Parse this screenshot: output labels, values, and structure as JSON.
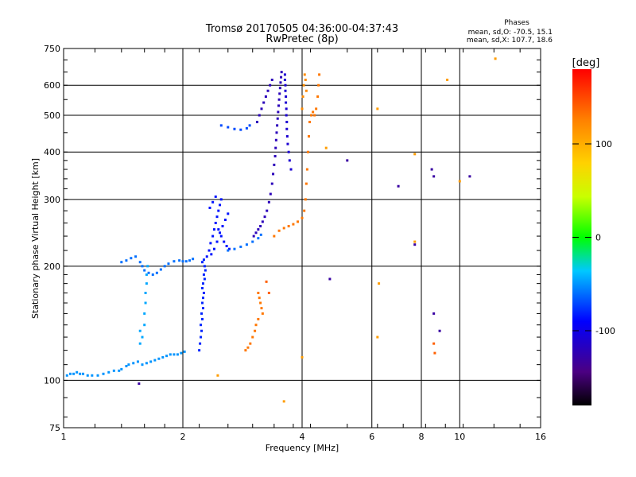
{
  "chart_data": {
    "type": "scatter",
    "title": "Tromsø 20170505 04:36:00-04:37:43",
    "subtitle": "RwPretec (8p)",
    "xlabel": "Frequency [MHz]",
    "ylabel": "Stationary phase Virtual Height [km]",
    "x_scale": "log",
    "y_scale": "log",
    "xlim": [
      1,
      16
    ],
    "ylim": [
      75,
      750
    ],
    "grid": true,
    "x_ticks": [
      {
        "v": 1,
        "label": "1"
      },
      {
        "v": 2,
        "label": "2"
      },
      {
        "v": 4,
        "label": "4"
      },
      {
        "v": 6,
        "label": "6"
      },
      {
        "v": 8,
        "label": "8"
      },
      {
        "v": 10,
        "label": "10"
      },
      {
        "v": 16,
        "label": "16"
      }
    ],
    "y_ticks": [
      {
        "v": 75,
        "label": "75"
      },
      {
        "v": 100,
        "label": "100"
      },
      {
        "v": 200,
        "label": "200"
      },
      {
        "v": 300,
        "label": "300"
      },
      {
        "v": 400,
        "label": "400"
      },
      {
        "v": 500,
        "label": "500"
      },
      {
        "v": 600,
        "label": "600"
      },
      {
        "v": 750,
        "label": "750"
      }
    ],
    "stats": {
      "heading": "Phases",
      "line1": "mean, sd,O: -70.5, 15.1",
      "line2": "mean, sd,X: 107.7, 18.6"
    },
    "colorbar": {
      "unit": "[deg]",
      "range": [
        -180,
        180
      ],
      "ticks": [
        {
          "v": 100,
          "label": "100"
        },
        {
          "v": 0,
          "label": "0"
        },
        {
          "v": -100,
          "label": "-100"
        }
      ]
    },
    "series": [
      {
        "phase": -50,
        "points": [
          [
            1.02,
            103
          ],
          [
            1.04,
            104
          ],
          [
            1.06,
            104
          ],
          [
            1.08,
            105
          ],
          [
            1.1,
            104
          ],
          [
            1.12,
            104
          ],
          [
            1.15,
            103
          ],
          [
            1.18,
            103
          ],
          [
            1.22,
            103
          ],
          [
            1.26,
            104
          ],
          [
            1.3,
            105
          ],
          [
            1.34,
            106
          ],
          [
            1.38,
            106
          ],
          [
            1.4,
            107
          ],
          [
            1.44,
            109
          ],
          [
            1.46,
            110
          ],
          [
            1.5,
            111
          ],
          [
            1.54,
            112
          ],
          [
            1.58,
            110
          ],
          [
            1.62,
            111
          ],
          [
            1.66,
            112
          ],
          [
            1.7,
            113
          ],
          [
            1.74,
            114
          ],
          [
            1.78,
            115
          ],
          [
            1.82,
            116
          ],
          [
            1.86,
            117
          ],
          [
            1.9,
            117
          ],
          [
            1.94,
            117
          ],
          [
            1.98,
            118
          ],
          [
            2.02,
            119
          ]
        ]
      },
      {
        "phase": -60,
        "points": [
          [
            1.4,
            205
          ],
          [
            1.44,
            207
          ],
          [
            1.48,
            210
          ],
          [
            1.52,
            212
          ],
          [
            1.56,
            205
          ],
          [
            1.58,
            200
          ],
          [
            1.6,
            195
          ],
          [
            1.64,
            192
          ],
          [
            1.68,
            190
          ],
          [
            1.72,
            192
          ],
          [
            1.76,
            196
          ],
          [
            1.8,
            200
          ],
          [
            1.84,
            203
          ],
          [
            1.9,
            206
          ],
          [
            1.96,
            207
          ],
          [
            2.0,
            206
          ],
          [
            2.04,
            206
          ],
          [
            2.08,
            207
          ],
          [
            2.12,
            209
          ]
        ]
      },
      {
        "phase": -45,
        "points": [
          [
            1.6,
            140
          ],
          [
            1.6,
            150
          ],
          [
            1.61,
            160
          ],
          [
            1.61,
            170
          ],
          [
            1.62,
            180
          ],
          [
            1.62,
            190
          ],
          [
            1.63,
            200
          ],
          [
            1.58,
            130
          ],
          [
            1.56,
            125
          ],
          [
            1.56,
            135
          ]
        ]
      },
      {
        "phase": -80,
        "points": [
          [
            2.2,
            120
          ],
          [
            2.21,
            125
          ],
          [
            2.22,
            130
          ],
          [
            2.23,
            135
          ],
          [
            2.22,
            140
          ],
          [
            2.24,
            145
          ],
          [
            2.23,
            150
          ],
          [
            2.25,
            155
          ],
          [
            2.24,
            160
          ],
          [
            2.25,
            165
          ],
          [
            2.26,
            170
          ],
          [
            2.24,
            175
          ],
          [
            2.25,
            180
          ],
          [
            2.27,
            185
          ],
          [
            2.26,
            190
          ],
          [
            2.28,
            195
          ],
          [
            2.27,
            200
          ],
          [
            2.24,
            205
          ],
          [
            2.26,
            208
          ]
        ]
      },
      {
        "phase": -85,
        "points": [
          [
            2.3,
            212
          ],
          [
            2.33,
            220
          ],
          [
            2.35,
            230
          ],
          [
            2.38,
            240
          ],
          [
            2.4,
            250
          ],
          [
            2.42,
            260
          ],
          [
            2.44,
            270
          ],
          [
            2.46,
            280
          ],
          [
            2.48,
            290
          ],
          [
            2.5,
            300
          ],
          [
            2.36,
            215
          ],
          [
            2.4,
            222
          ],
          [
            2.44,
            232
          ],
          [
            2.48,
            245
          ],
          [
            2.52,
            255
          ],
          [
            2.56,
            265
          ],
          [
            2.6,
            275
          ],
          [
            2.34,
            285
          ],
          [
            2.38,
            295
          ],
          [
            2.42,
            305
          ],
          [
            2.46,
            250
          ],
          [
            2.5,
            240
          ],
          [
            2.54,
            232
          ],
          [
            2.58,
            226
          ],
          [
            2.62,
            222
          ]
        ]
      },
      {
        "phase": -60,
        "points": [
          [
            2.6,
            220
          ],
          [
            2.7,
            222
          ],
          [
            2.8,
            225
          ],
          [
            2.9,
            228
          ],
          [
            3.0,
            232
          ],
          [
            3.1,
            237
          ],
          [
            3.15,
            242
          ]
        ]
      },
      {
        "phase": -120,
        "points": [
          [
            3.02,
            240
          ],
          [
            3.06,
            245
          ],
          [
            3.1,
            250
          ],
          [
            3.14,
            255
          ],
          [
            3.18,
            262
          ],
          [
            3.22,
            270
          ],
          [
            3.26,
            280
          ],
          [
            3.3,
            295
          ],
          [
            3.33,
            310
          ],
          [
            3.36,
            330
          ],
          [
            3.38,
            350
          ],
          [
            3.4,
            370
          ],
          [
            3.42,
            390
          ],
          [
            3.43,
            410
          ],
          [
            3.44,
            430
          ],
          [
            3.45,
            450
          ],
          [
            3.46,
            470
          ],
          [
            3.47,
            490
          ],
          [
            3.48,
            510
          ],
          [
            3.49,
            530
          ],
          [
            3.5,
            550
          ],
          [
            3.51,
            570
          ],
          [
            3.52,
            590
          ],
          [
            3.53,
            610
          ],
          [
            3.54,
            630
          ],
          [
            3.55,
            650
          ]
        ]
      },
      {
        "phase": -110,
        "points": [
          [
            3.62,
            640
          ],
          [
            3.62,
            620
          ],
          [
            3.63,
            600
          ],
          [
            3.63,
            580
          ],
          [
            3.64,
            560
          ],
          [
            3.64,
            540
          ],
          [
            3.65,
            520
          ],
          [
            3.65,
            500
          ],
          [
            3.66,
            480
          ],
          [
            3.66,
            460
          ],
          [
            3.67,
            440
          ],
          [
            3.68,
            420
          ],
          [
            3.7,
            400
          ],
          [
            3.72,
            380
          ],
          [
            3.75,
            360
          ]
        ]
      },
      {
        "phase": -120,
        "points": [
          [
            3.08,
            480
          ],
          [
            3.12,
            500
          ],
          [
            3.16,
            520
          ],
          [
            3.2,
            540
          ],
          [
            3.24,
            560
          ],
          [
            3.28,
            580
          ],
          [
            3.32,
            600
          ],
          [
            3.36,
            620
          ]
        ]
      },
      {
        "phase": -70,
        "points": [
          [
            2.5,
            470
          ],
          [
            2.6,
            465
          ],
          [
            2.7,
            460
          ],
          [
            2.8,
            458
          ],
          [
            2.9,
            462
          ],
          [
            2.95,
            470
          ]
        ]
      },
      {
        "phase": 130,
        "points": [
          [
            3.4,
            240
          ],
          [
            3.5,
            248
          ],
          [
            3.6,
            252
          ],
          [
            3.7,
            255
          ],
          [
            3.8,
            258
          ],
          [
            3.9,
            262
          ],
          [
            4.0,
            268
          ],
          [
            4.05,
            280
          ],
          [
            4.08,
            300
          ],
          [
            4.1,
            330
          ],
          [
            4.12,
            360
          ],
          [
            4.14,
            400
          ],
          [
            4.16,
            440
          ],
          [
            4.18,
            480
          ],
          [
            4.22,
            500
          ],
          [
            4.26,
            510
          ],
          [
            4.3,
            500
          ],
          [
            4.34,
            520
          ],
          [
            4.38,
            560
          ],
          [
            4.4,
            600
          ],
          [
            4.42,
            640
          ]
        ]
      },
      {
        "phase": 120,
        "points": [
          [
            4.0,
            520
          ],
          [
            4.02,
            560
          ],
          [
            4.04,
            600
          ],
          [
            4.06,
            640
          ],
          [
            4.08,
            620
          ],
          [
            4.1,
            580
          ]
        ]
      },
      {
        "phase": 130,
        "points": [
          [
            3.1,
            170
          ],
          [
            3.12,
            165
          ],
          [
            3.14,
            160
          ],
          [
            3.16,
            155
          ],
          [
            3.18,
            150
          ],
          [
            3.1,
            145
          ],
          [
            3.06,
            140
          ],
          [
            3.04,
            135
          ],
          [
            3.0,
            130
          ],
          [
            2.96,
            125
          ],
          [
            2.92,
            122
          ],
          [
            2.88,
            120
          ]
        ]
      },
      {
        "phase": 110,
        "points": [
          [
            6.2,
            520
          ],
          [
            6.25,
            180
          ],
          [
            6.2,
            130
          ],
          [
            7.7,
            395
          ],
          [
            7.7,
            232
          ],
          [
            9.3,
            620
          ],
          [
            10.0,
            335
          ],
          [
            12.3,
            705
          ],
          [
            4.0,
            115
          ],
          [
            3.6,
            88
          ],
          [
            2.45,
            103
          ],
          [
            4.6,
            410
          ]
        ]
      },
      {
        "phase": -130,
        "points": [
          [
            5.2,
            380
          ],
          [
            7.0,
            325
          ],
          [
            8.5,
            360
          ],
          [
            8.6,
            345
          ],
          [
            7.7,
            228
          ],
          [
            4.7,
            185
          ],
          [
            8.6,
            150
          ],
          [
            8.9,
            135
          ],
          [
            10.6,
            345
          ],
          [
            1.55,
            98
          ]
        ]
      },
      {
        "phase": 140,
        "points": [
          [
            8.6,
            125
          ],
          [
            8.65,
            118
          ],
          [
            3.25,
            182
          ],
          [
            3.3,
            170
          ]
        ]
      }
    ]
  }
}
